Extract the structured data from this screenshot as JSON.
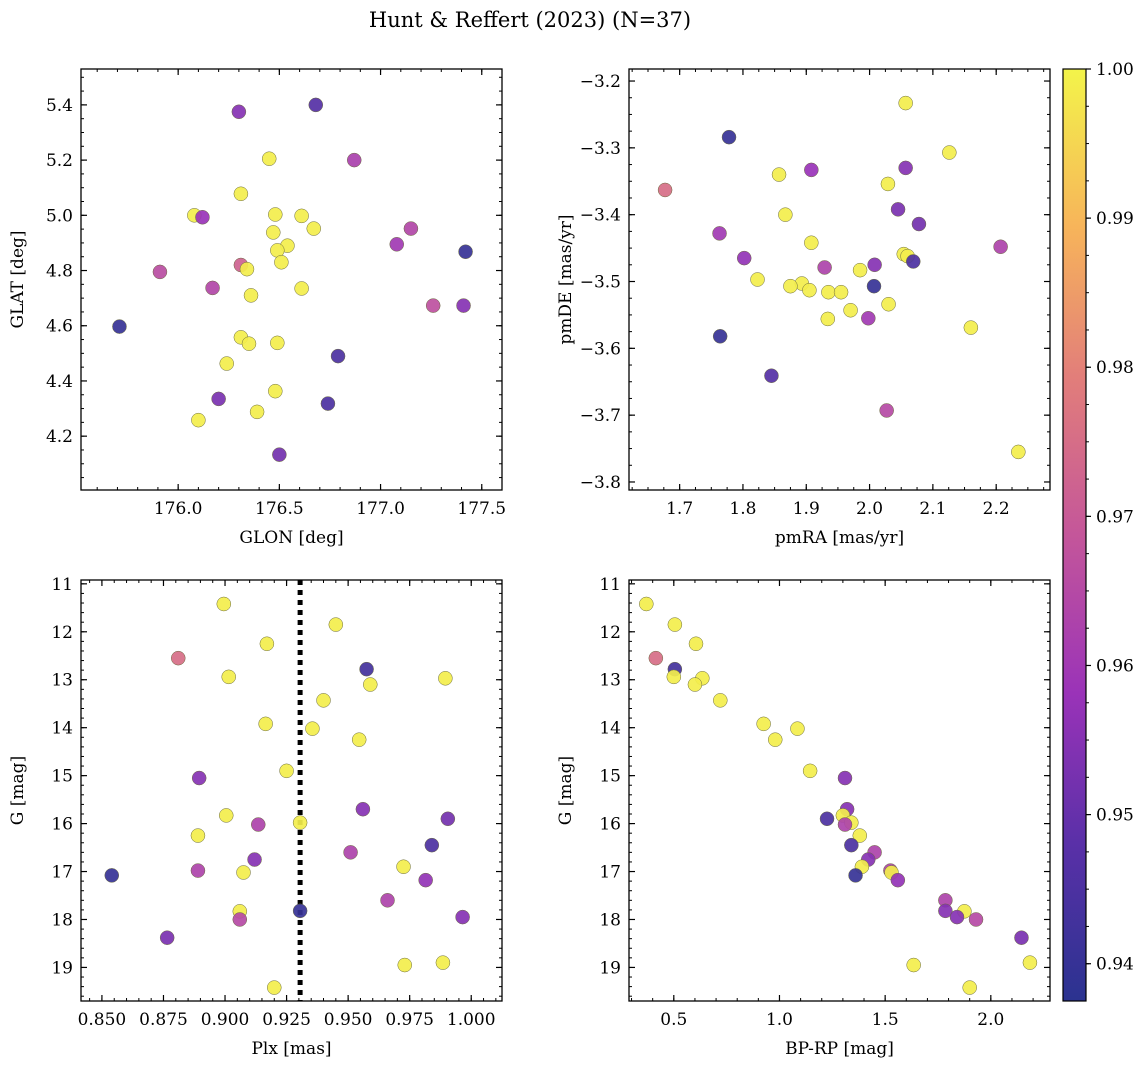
{
  "figure": {
    "title": "Hunt & Reffert (2023) (N=37)"
  },
  "colorbar": {
    "colormap": "plasma",
    "range": [
      0.9375,
      1.0
    ],
    "ticks": [
      "0.94",
      "0.95",
      "0.96",
      "0.97",
      "0.98",
      "0.99",
      "1.00"
    ],
    "tick_values": [
      0.94,
      0.95,
      0.96,
      0.97,
      0.98,
      0.99,
      1.0
    ]
  },
  "chart_data": [
    {
      "id": "sky",
      "type": "scatter",
      "xlabel": "GLON [deg]",
      "ylabel": "GLAT [deg]",
      "xlim": [
        175.52,
        177.6
      ],
      "ylim": [
        4.005,
        5.53
      ],
      "xticks": [
        176.0,
        176.5,
        177.0,
        177.5
      ],
      "xticklabels": [
        "176.0",
        "176.5",
        "177.0",
        "177.5"
      ],
      "yticks": [
        4.2,
        4.4,
        4.6,
        4.8,
        5.0,
        5.2,
        5.4
      ],
      "yticklabels": [
        "4.2",
        "4.4",
        "4.6",
        "4.8",
        "5.0",
        "5.2",
        "5.4"
      ],
      "points": [
        {
          "x": 176.3,
          "y": 5.375,
          "c": 0.955
        },
        {
          "x": 176.68,
          "y": 5.4,
          "c": 0.947
        },
        {
          "x": 176.45,
          "y": 5.205,
          "c": 0.999
        },
        {
          "x": 176.87,
          "y": 5.2,
          "c": 0.962
        },
        {
          "x": 176.31,
          "y": 5.078,
          "c": 0.999
        },
        {
          "x": 176.08,
          "y": 5.0,
          "c": 0.999
        },
        {
          "x": 176.12,
          "y": 4.993,
          "c": 0.958
        },
        {
          "x": 176.48,
          "y": 5.003,
          "c": 0.999
        },
        {
          "x": 176.61,
          "y": 4.998,
          "c": 0.999
        },
        {
          "x": 176.67,
          "y": 4.952,
          "c": 0.999
        },
        {
          "x": 177.15,
          "y": 4.952,
          "c": 0.964
        },
        {
          "x": 176.47,
          "y": 4.938,
          "c": 0.999
        },
        {
          "x": 176.54,
          "y": 4.89,
          "c": 0.999
        },
        {
          "x": 177.08,
          "y": 4.895,
          "c": 0.96
        },
        {
          "x": 176.49,
          "y": 4.873,
          "c": 0.999
        },
        {
          "x": 177.42,
          "y": 4.868,
          "c": 0.94
        },
        {
          "x": 176.51,
          "y": 4.83,
          "c": 0.999
        },
        {
          "x": 176.31,
          "y": 4.82,
          "c": 0.972
        },
        {
          "x": 176.34,
          "y": 4.805,
          "c": 0.999
        },
        {
          "x": 175.91,
          "y": 4.795,
          "c": 0.966
        },
        {
          "x": 176.17,
          "y": 4.737,
          "c": 0.964
        },
        {
          "x": 176.61,
          "y": 4.735,
          "c": 0.999
        },
        {
          "x": 176.36,
          "y": 4.71,
          "c": 0.999
        },
        {
          "x": 177.26,
          "y": 4.673,
          "c": 0.967
        },
        {
          "x": 177.41,
          "y": 4.673,
          "c": 0.955
        },
        {
          "x": 175.71,
          "y": 4.597,
          "c": 0.94
        },
        {
          "x": 176.31,
          "y": 4.558,
          "c": 0.999
        },
        {
          "x": 176.35,
          "y": 4.535,
          "c": 0.999
        },
        {
          "x": 176.49,
          "y": 4.538,
          "c": 0.999
        },
        {
          "x": 176.79,
          "y": 4.49,
          "c": 0.945
        },
        {
          "x": 176.24,
          "y": 4.463,
          "c": 0.999
        },
        {
          "x": 176.48,
          "y": 4.363,
          "c": 0.999
        },
        {
          "x": 176.2,
          "y": 4.335,
          "c": 0.953
        },
        {
          "x": 176.74,
          "y": 4.318,
          "c": 0.945
        },
        {
          "x": 176.39,
          "y": 4.288,
          "c": 0.999
        },
        {
          "x": 176.1,
          "y": 4.258,
          "c": 0.999
        },
        {
          "x": 176.5,
          "y": 4.133,
          "c": 0.952
        }
      ]
    },
    {
      "id": "pm",
      "type": "scatter",
      "xlabel": "pmRA [mas/yr]",
      "ylabel": "pmDE [mas/yr]",
      "xlim": [
        1.62,
        2.285
      ],
      "ylim": [
        -3.812,
        -3.182
      ],
      "xticks": [
        1.7,
        1.8,
        1.9,
        2.0,
        2.1,
        2.2
      ],
      "xticklabels": [
        "1.7",
        "1.8",
        "1.9",
        "2.0",
        "2.1",
        "2.2"
      ],
      "yticks": [
        -3.8,
        -3.7,
        -3.6,
        -3.5,
        -3.4,
        -3.3,
        -3.2
      ],
      "yticklabels": [
        "−3.8",
        "−3.7",
        "−3.6",
        "−3.5",
        "−3.4",
        "−3.3",
        "−3.2"
      ],
      "points": [
        {
          "x": 2.057,
          "y": -3.233,
          "c": 0.999
        },
        {
          "x": 1.778,
          "y": -3.284,
          "c": 0.94
        },
        {
          "x": 2.126,
          "y": -3.307,
          "c": 0.999
        },
        {
          "x": 1.908,
          "y": -3.333,
          "c": 0.958
        },
        {
          "x": 2.057,
          "y": -3.33,
          "c": 0.955
        },
        {
          "x": 1.857,
          "y": -3.34,
          "c": 0.999
        },
        {
          "x": 1.677,
          "y": -3.363,
          "c": 0.975
        },
        {
          "x": 2.029,
          "y": -3.354,
          "c": 0.999
        },
        {
          "x": 2.045,
          "y": -3.392,
          "c": 0.953
        },
        {
          "x": 1.867,
          "y": -3.4,
          "c": 0.999
        },
        {
          "x": 2.078,
          "y": -3.414,
          "c": 0.952
        },
        {
          "x": 1.763,
          "y": -3.428,
          "c": 0.96
        },
        {
          "x": 1.908,
          "y": -3.442,
          "c": 0.999
        },
        {
          "x": 2.207,
          "y": -3.448,
          "c": 0.963
        },
        {
          "x": 2.054,
          "y": -3.459,
          "c": 0.999
        },
        {
          "x": 2.06,
          "y": -3.462,
          "c": 0.999
        },
        {
          "x": 1.802,
          "y": -3.465,
          "c": 0.957
        },
        {
          "x": 2.069,
          "y": -3.47,
          "c": 0.945
        },
        {
          "x": 2.008,
          "y": -3.475,
          "c": 0.955
        },
        {
          "x": 1.929,
          "y": -3.479,
          "c": 0.963
        },
        {
          "x": 1.985,
          "y": -3.483,
          "c": 0.999
        },
        {
          "x": 1.823,
          "y": -3.497,
          "c": 0.999
        },
        {
          "x": 1.893,
          "y": -3.503,
          "c": 0.999
        },
        {
          "x": 2.007,
          "y": -3.507,
          "c": 0.94
        },
        {
          "x": 1.875,
          "y": -3.507,
          "c": 0.999
        },
        {
          "x": 1.905,
          "y": -3.513,
          "c": 0.999
        },
        {
          "x": 1.935,
          "y": -3.516,
          "c": 0.999
        },
        {
          "x": 1.955,
          "y": -3.516,
          "c": 0.999
        },
        {
          "x": 2.03,
          "y": -3.534,
          "c": 0.999
        },
        {
          "x": 1.97,
          "y": -3.543,
          "c": 0.999
        },
        {
          "x": 1.998,
          "y": -3.555,
          "c": 0.96
        },
        {
          "x": 1.934,
          "y": -3.556,
          "c": 0.999
        },
        {
          "x": 2.16,
          "y": -3.569,
          "c": 0.999
        },
        {
          "x": 1.764,
          "y": -3.582,
          "c": 0.94
        },
        {
          "x": 1.845,
          "y": -3.641,
          "c": 0.947
        },
        {
          "x": 2.027,
          "y": -3.693,
          "c": 0.965
        },
        {
          "x": 2.235,
          "y": -3.755,
          "c": 0.999
        }
      ]
    },
    {
      "id": "plx",
      "type": "scatter",
      "xlabel": "Plx [mas]",
      "ylabel": "G [mag]",
      "xlim": [
        0.8415,
        1.0125
      ],
      "ylim": [
        19.7,
        10.92
      ],
      "y_inverted": true,
      "xticks": [
        0.85,
        0.875,
        0.9,
        0.925,
        0.95,
        0.975,
        1.0
      ],
      "xticklabels": [
        "0.850",
        "0.875",
        "0.900",
        "0.925",
        "0.950",
        "0.975",
        "1.000"
      ],
      "yticks": [
        11,
        12,
        13,
        14,
        15,
        16,
        17,
        18,
        19
      ],
      "yticklabels": [
        "11",
        "12",
        "13",
        "14",
        "15",
        "16",
        "17",
        "18",
        "19"
      ],
      "vline": 0.9305,
      "points": [
        {
          "x": 0.8995,
          "y": 11.42,
          "c": 0.999
        },
        {
          "x": 0.945,
          "y": 11.85,
          "c": 0.999
        },
        {
          "x": 0.917,
          "y": 12.25,
          "c": 0.999
        },
        {
          "x": 0.881,
          "y": 12.55,
          "c": 0.975
        },
        {
          "x": 0.9575,
          "y": 12.78,
          "c": 0.943
        },
        {
          "x": 0.9015,
          "y": 12.94,
          "c": 0.999
        },
        {
          "x": 0.9895,
          "y": 12.97,
          "c": 0.999
        },
        {
          "x": 0.959,
          "y": 13.1,
          "c": 0.999
        },
        {
          "x": 0.94,
          "y": 13.43,
          "c": 0.999
        },
        {
          "x": 0.9165,
          "y": 13.92,
          "c": 0.999
        },
        {
          "x": 0.9355,
          "y": 14.02,
          "c": 0.999
        },
        {
          "x": 0.9545,
          "y": 14.25,
          "c": 0.999
        },
        {
          "x": 0.925,
          "y": 14.9,
          "c": 0.999
        },
        {
          "x": 0.8895,
          "y": 15.05,
          "c": 0.955
        },
        {
          "x": 0.956,
          "y": 15.7,
          "c": 0.955
        },
        {
          "x": 0.9005,
          "y": 15.83,
          "c": 0.999
        },
        {
          "x": 0.9905,
          "y": 15.9,
          "c": 0.952
        },
        {
          "x": 0.9305,
          "y": 15.98,
          "c": 0.999
        },
        {
          "x": 0.9135,
          "y": 16.02,
          "c": 0.963
        },
        {
          "x": 0.889,
          "y": 16.25,
          "c": 0.999
        },
        {
          "x": 0.984,
          "y": 16.45,
          "c": 0.945
        },
        {
          "x": 0.951,
          "y": 16.6,
          "c": 0.963
        },
        {
          "x": 0.912,
          "y": 16.75,
          "c": 0.955
        },
        {
          "x": 0.9725,
          "y": 16.9,
          "c": 0.999
        },
        {
          "x": 0.889,
          "y": 16.98,
          "c": 0.963
        },
        {
          "x": 0.9075,
          "y": 17.02,
          "c": 0.999
        },
        {
          "x": 0.854,
          "y": 17.08,
          "c": 0.94
        },
        {
          "x": 0.9815,
          "y": 17.18,
          "c": 0.957
        },
        {
          "x": 0.966,
          "y": 17.6,
          "c": 0.963
        },
        {
          "x": 0.9305,
          "y": 17.82,
          "c": 0.94
        },
        {
          "x": 0.906,
          "y": 17.83,
          "c": 0.999
        },
        {
          "x": 0.906,
          "y": 18.0,
          "c": 0.965
        },
        {
          "x": 0.9965,
          "y": 17.95,
          "c": 0.955
        },
        {
          "x": 0.8765,
          "y": 18.38,
          "c": 0.953
        },
        {
          "x": 0.9885,
          "y": 18.9,
          "c": 0.999
        },
        {
          "x": 0.973,
          "y": 18.95,
          "c": 0.999
        },
        {
          "x": 0.92,
          "y": 19.42,
          "c": 0.999
        }
      ]
    },
    {
      "id": "cmd",
      "type": "scatter",
      "xlabel": "BP-RP [mag]",
      "ylabel": "G [mag]",
      "xlim": [
        0.288,
        2.28
      ],
      "ylim": [
        19.7,
        10.92
      ],
      "y_inverted": true,
      "xticks": [
        0.5,
        1.0,
        1.5,
        2.0
      ],
      "xticklabels": [
        "0.5",
        "1.0",
        "1.5",
        "2.0"
      ],
      "yticks": [
        11,
        12,
        13,
        14,
        15,
        16,
        17,
        18,
        19
      ],
      "yticklabels": [
        "11",
        "12",
        "13",
        "14",
        "15",
        "16",
        "17",
        "18",
        "19"
      ],
      "points": [
        {
          "x": 0.37,
          "y": 11.42,
          "c": 0.999
        },
        {
          "x": 0.505,
          "y": 11.85,
          "c": 0.999
        },
        {
          "x": 0.605,
          "y": 12.25,
          "c": 0.999
        },
        {
          "x": 0.415,
          "y": 12.55,
          "c": 0.975
        },
        {
          "x": 0.505,
          "y": 12.78,
          "c": 0.943
        },
        {
          "x": 0.5,
          "y": 12.94,
          "c": 0.999
        },
        {
          "x": 0.635,
          "y": 12.97,
          "c": 0.999
        },
        {
          "x": 0.6,
          "y": 13.1,
          "c": 0.999
        },
        {
          "x": 0.72,
          "y": 13.43,
          "c": 0.999
        },
        {
          "x": 0.925,
          "y": 13.92,
          "c": 0.999
        },
        {
          "x": 1.085,
          "y": 14.02,
          "c": 0.999
        },
        {
          "x": 0.98,
          "y": 14.25,
          "c": 0.999
        },
        {
          "x": 1.145,
          "y": 14.9,
          "c": 0.999
        },
        {
          "x": 1.31,
          "y": 15.05,
          "c": 0.955
        },
        {
          "x": 1.32,
          "y": 15.7,
          "c": 0.955
        },
        {
          "x": 1.3,
          "y": 15.83,
          "c": 0.999
        },
        {
          "x": 1.225,
          "y": 15.9,
          "c": 0.945
        },
        {
          "x": 1.34,
          "y": 15.98,
          "c": 0.999
        },
        {
          "x": 1.31,
          "y": 16.02,
          "c": 0.963
        },
        {
          "x": 1.38,
          "y": 16.25,
          "c": 0.999
        },
        {
          "x": 1.34,
          "y": 16.45,
          "c": 0.945
        },
        {
          "x": 1.45,
          "y": 16.6,
          "c": 0.963
        },
        {
          "x": 1.42,
          "y": 16.75,
          "c": 0.955
        },
        {
          "x": 1.39,
          "y": 16.9,
          "c": 0.999
        },
        {
          "x": 1.525,
          "y": 16.98,
          "c": 0.963
        },
        {
          "x": 1.53,
          "y": 17.02,
          "c": 0.999
        },
        {
          "x": 1.36,
          "y": 17.08,
          "c": 0.94
        },
        {
          "x": 1.56,
          "y": 17.18,
          "c": 0.957
        },
        {
          "x": 1.785,
          "y": 17.6,
          "c": 0.963
        },
        {
          "x": 1.785,
          "y": 17.82,
          "c": 0.955
        },
        {
          "x": 1.875,
          "y": 17.83,
          "c": 0.999
        },
        {
          "x": 1.84,
          "y": 17.95,
          "c": 0.955
        },
        {
          "x": 1.93,
          "y": 18.0,
          "c": 0.965
        },
        {
          "x": 2.145,
          "y": 18.38,
          "c": 0.953
        },
        {
          "x": 2.185,
          "y": 18.9,
          "c": 0.999
        },
        {
          "x": 1.635,
          "y": 18.95,
          "c": 0.999
        },
        {
          "x": 1.9,
          "y": 19.42,
          "c": 0.999
        }
      ]
    }
  ]
}
